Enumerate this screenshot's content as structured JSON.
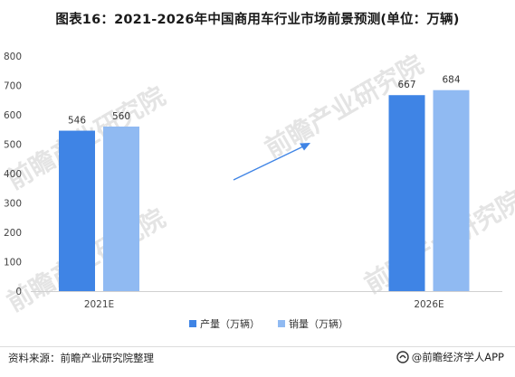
{
  "title": "图表16：2021-2026年中国商用车行业市场前景预测(单位：万辆)",
  "source": "资料来源：前瞻产业研究院整理",
  "brand": "@前瞻经济学人APP",
  "watermark": "前瞻产业研究院",
  "chart_data": {
    "type": "bar",
    "categories": [
      "2021E",
      "2026E"
    ],
    "series": [
      {
        "name": "产量（万辆）",
        "values": [
          546,
          667
        ],
        "color": "#3f84e5"
      },
      {
        "name": "销量（万辆）",
        "values": [
          560,
          684
        ],
        "color": "#90baf2"
      }
    ],
    "ylim": [
      0,
      800
    ],
    "yticks": [
      0,
      100,
      200,
      300,
      400,
      500,
      600,
      700,
      800
    ],
    "grid": false,
    "legend": "bottom",
    "annotation": "upward-trend-arrow"
  }
}
